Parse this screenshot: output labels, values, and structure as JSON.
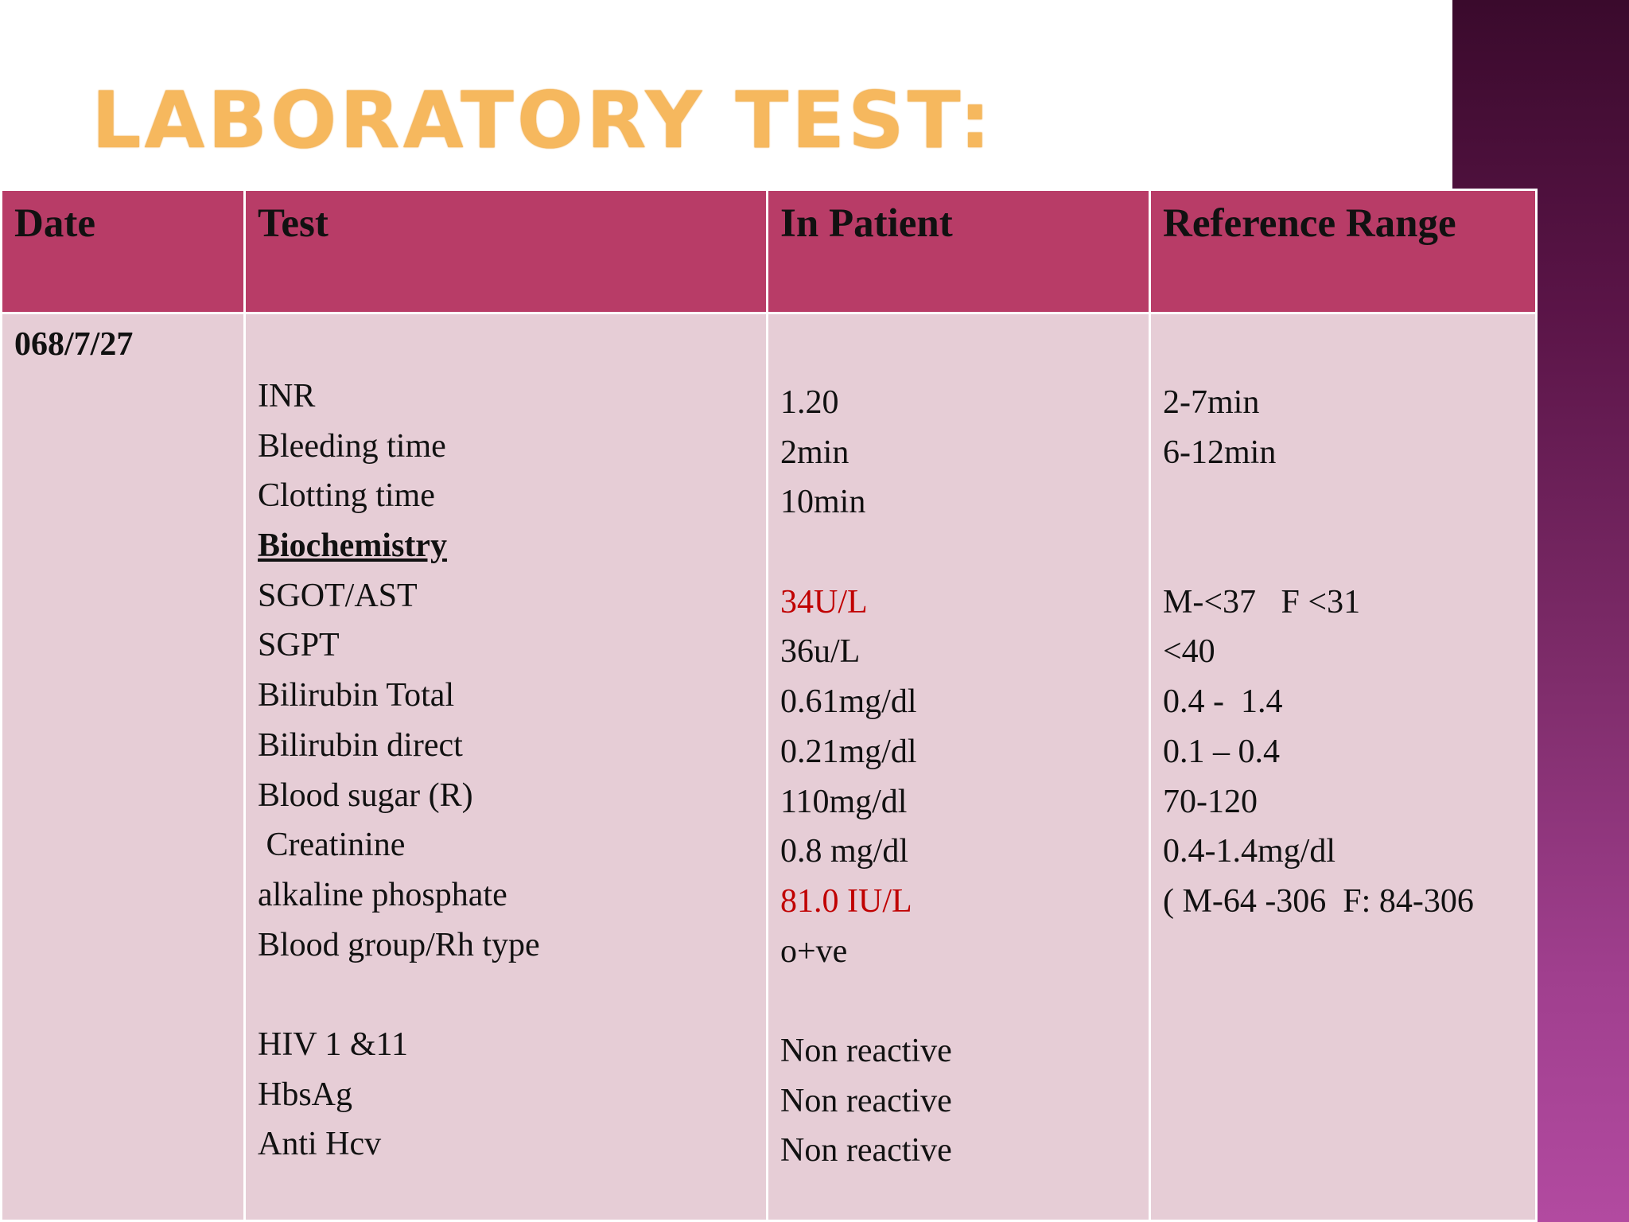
{
  "title": "LABORATORY TEST:",
  "headers": [
    "Date",
    "Test",
    "In Patient",
    "Reference Range"
  ],
  "date": "068/7/27",
  "tests": [
    "INR",
    "Bleeding time",
    "Clotting time",
    "Biochemistry",
    "SGOT/AST",
    "SGPT",
    "Bilirubin Total",
    "Bilirubin direct",
    "Blood sugar (R)",
    " Creatinine",
    "alkaline phosphate",
    "Blood group/Rh type",
    "HIV 1 &11",
    "HbsAg",
    "Anti Hcv"
  ],
  "patient_values": [
    "1.20",
    "2min",
    "10min",
    "34U/L",
    "36u/L",
    "0.61mg/dl",
    "0.21mg/dl",
    "110mg/dl",
    "0.8 mg/dl",
    "81.0 IU/L",
    "o+ve",
    "Non reactive",
    "Non reactive",
    "Non reactive"
  ],
  "reference_ranges": [
    "2-7min",
    "6-12min",
    "M-<37   F <31",
    "<40",
    "0.4 -  1.4",
    "0.1 – 0.4",
    "70-120",
    "0.4-1.4mg/dl",
    "( M-64 -306  F: 84-306"
  ],
  "colors": {
    "header_bg": "#b83c67",
    "body_bg": "#e6cdd6",
    "abnormal_text": "#c00000",
    "title": "#f6b85e"
  }
}
